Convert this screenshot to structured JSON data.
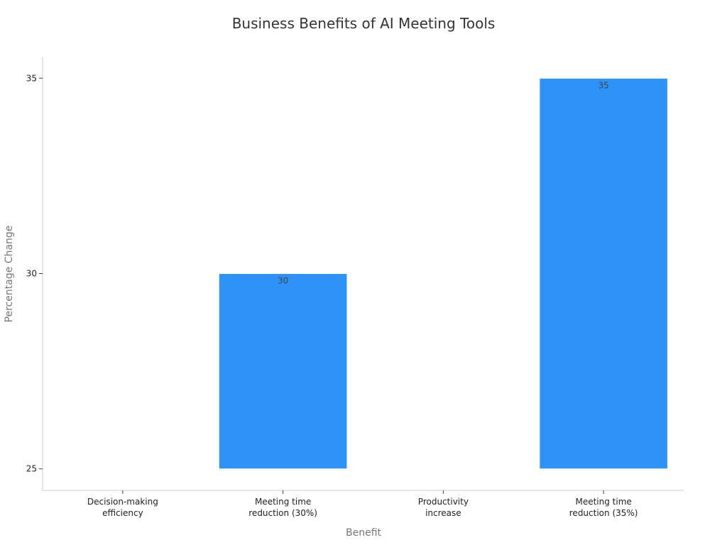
{
  "chart_data": {
    "type": "bar",
    "title": "Business Benefits of AI Meeting Tools",
    "xlabel": "Benefit",
    "ylabel": "Percentage Change",
    "categories": [
      [
        "Decision-making",
        "efficiency"
      ],
      [
        "Meeting time",
        "reduction (30%)"
      ],
      [
        "Productivity",
        "increase"
      ],
      [
        "Meeting time",
        "reduction (35%)"
      ]
    ],
    "values": [
      null,
      30,
      null,
      35
    ],
    "ylim": [
      24.45,
      35.55
    ],
    "yticks": [
      25,
      30,
      35
    ],
    "bar_base": 25,
    "bar_color": "#2e93f8",
    "grid": false,
    "legend": "none"
  }
}
